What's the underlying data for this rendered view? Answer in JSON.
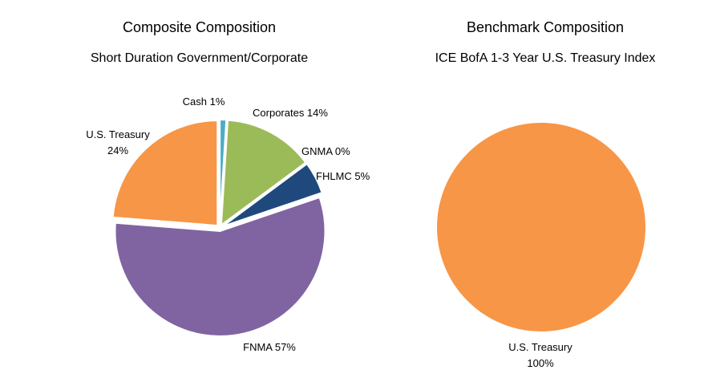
{
  "chart_data": [
    {
      "type": "pie",
      "title": "Composite Composition",
      "subtitle": "Short Duration Government/Corporate",
      "slices": [
        {
          "name": "Cash",
          "label": "Cash 1%",
          "value": 1,
          "color": "#4BACC6"
        },
        {
          "name": "Corporates",
          "label": "Corporates 14%",
          "value": 14,
          "color": "#9BBB59"
        },
        {
          "name": "GNMA",
          "label": "GNMA 0%",
          "value": 0,
          "color": "#C0504D"
        },
        {
          "name": "FHLMC",
          "label": "FHLMC 5%",
          "value": 5,
          "color": "#1F497D"
        },
        {
          "name": "FNMA",
          "label": "FNMA 57%",
          "value": 57,
          "color": "#8064A2"
        },
        {
          "name": "U.S. Treasury",
          "label": "U.S. Treasury\n24%",
          "value": 24,
          "color": "#F79646"
        }
      ]
    },
    {
      "type": "pie",
      "title": "Benchmark Composition",
      "subtitle": "ICE BofA 1-3 Year U.S. Treasury Index",
      "slices": [
        {
          "name": "U.S. Treasury",
          "label": "U.S. Treasury\n100%",
          "value": 100,
          "color": "#F79646"
        }
      ]
    }
  ]
}
